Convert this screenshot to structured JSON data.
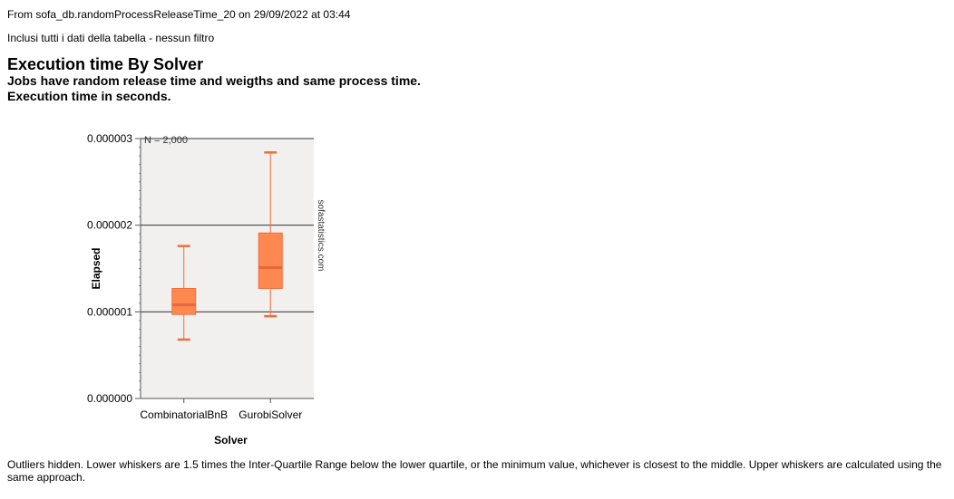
{
  "header": {
    "source": "From sofa_db.randomProcessReleaseTime_20 on 29/09/2022 at 03:44",
    "filter": "Inclusi tutti i dati della tabella - nessun filtro"
  },
  "title": "Execution time By Solver",
  "subtitle_lines": [
    "Jobs have random release time and weigths and same process time.",
    "Execution time in seconds."
  ],
  "footnote": "Outliers hidden. Lower whiskers are 1.5 times the Inter-Quartile Range below the lower quartile, or the minimum value, whichever is closest to the middle. Upper whiskers are calculated using the same approach.",
  "watermark": "sofastatistics.com",
  "colors": {
    "plot_background": "#f1f0ef",
    "box_fill": "#ff8850",
    "box_stroke": "#ef6e3a",
    "median": "#e8663c",
    "whisker": "#ef6e3a",
    "gridline": "#333333"
  },
  "chart_data": {
    "type": "box",
    "title": "Execution time By Solver",
    "xlabel": "Solver",
    "ylabel": "Elapsed",
    "ylim": [
      0,
      3e-06
    ],
    "yticks": [
      0,
      1e-06,
      2e-06,
      3e-06
    ],
    "ytick_labels": [
      "0.000000",
      "0.000001",
      "0.000002",
      "0.000003"
    ],
    "grid": true,
    "annotation": "N = 2,000",
    "categories": [
      "CombinatorialBnB",
      "GurobiSolver"
    ],
    "boxes": [
      {
        "name": "CombinatorialBnB",
        "whisker_low": 6.8e-07,
        "q1": 9.7e-07,
        "median": 1.08e-06,
        "q3": 1.27e-06,
        "whisker_high": 1.76e-06
      },
      {
        "name": "GurobiSolver",
        "whisker_low": 9.5e-07,
        "q1": 1.27e-06,
        "median": 1.51e-06,
        "q3": 1.91e-06,
        "whisker_high": 2.84e-06
      }
    ]
  }
}
